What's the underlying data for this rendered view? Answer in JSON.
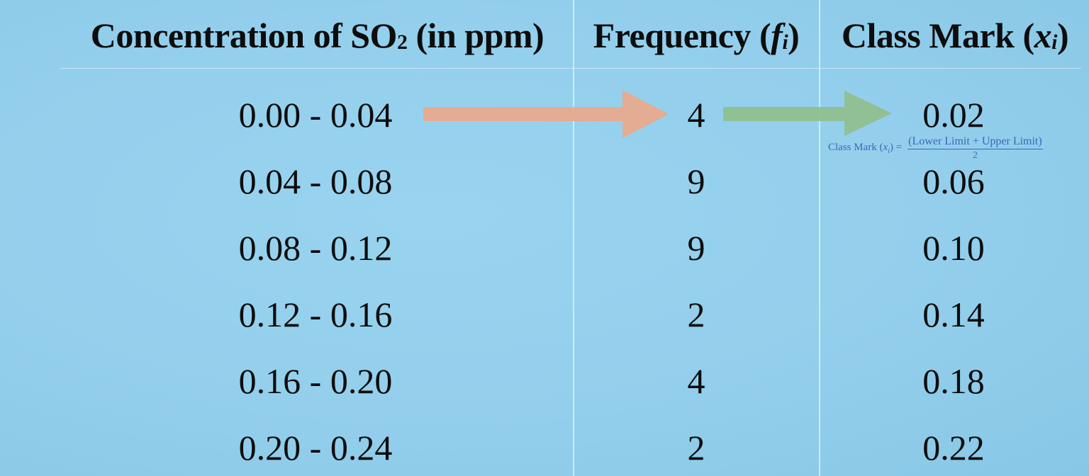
{
  "header": {
    "col1": {
      "pre": "Concentration of SO",
      "sub": "2",
      "post": " (in ppm)"
    },
    "col2": {
      "pre": "Frequency (",
      "var": "f",
      "sub": "i",
      "post": ")"
    },
    "col3": {
      "pre": "Class Mark (",
      "var": "x",
      "sub": "i",
      "post": ")"
    }
  },
  "rows": [
    {
      "interval": "0.00 - 0.04",
      "frequency": "4",
      "class_mark": "0.02"
    },
    {
      "interval": "0.04 - 0.08",
      "frequency": "9",
      "class_mark": "0.06"
    },
    {
      "interval": "0.08 - 0.12",
      "frequency": "9",
      "class_mark": "0.10"
    },
    {
      "interval": "0.12 - 0.16",
      "frequency": "2",
      "class_mark": "0.14"
    },
    {
      "interval": "0.16 - 0.20",
      "frequency": "4",
      "class_mark": "0.18"
    },
    {
      "interval": "0.20 - 0.24",
      "frequency": "2",
      "class_mark": "0.22"
    }
  ],
  "formula": {
    "lhs_pre": "Class Mark (",
    "lhs_var": "x",
    "lhs_sub": "i",
    "lhs_post": ") =",
    "numerator": "(Lower Limit + Upper Limit)",
    "denominator": "2"
  },
  "colors": {
    "background": "#93cfec",
    "arrow_interval_to_frequency": "#eaa88a",
    "arrow_frequency_to_class_mark": "#8fbf8c",
    "formula_text": "#3c67b8"
  }
}
